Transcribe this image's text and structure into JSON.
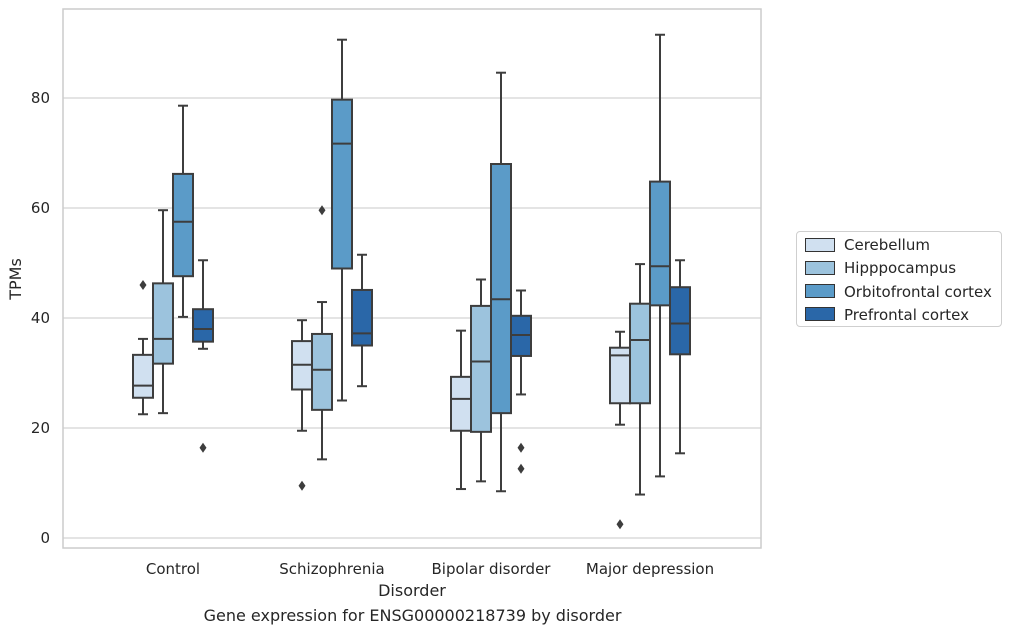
{
  "title": "Gene expression for ENSG00000218739 by disorder",
  "chart_data": {
    "type": "box",
    "title": "Gene expression for ENSG00000218739 by disorder",
    "xlabel": "Disorder",
    "ylabel": "TPMs",
    "ylim": [
      -2,
      96
    ],
    "yticks": [
      0,
      20,
      40,
      60,
      80
    ],
    "grid": "horizontal",
    "legend_position": "right",
    "categories": [
      "Control",
      "Schizophrenia",
      "Bipolar disorder",
      "Major depression"
    ],
    "series": [
      {
        "name": "Cerebellum",
        "color": "#d0e0f0",
        "boxes": [
          {
            "whislo": 22.5,
            "q1": 25.5,
            "med": 27.7,
            "q3": 33.3,
            "whishi": 36.2,
            "fliers": [
              46
            ]
          },
          {
            "whislo": 19.5,
            "q1": 27.0,
            "med": 31.5,
            "q3": 35.8,
            "whishi": 39.6,
            "fliers": [
              9.5
            ]
          },
          {
            "whislo": 8.9,
            "q1": 19.5,
            "med": 25.3,
            "q3": 29.3,
            "whishi": 37.7,
            "fliers": []
          },
          {
            "whislo": 20.6,
            "q1": 24.5,
            "med": 33.2,
            "q3": 34.6,
            "whishi": 37.5,
            "fliers": [
              2.5
            ]
          }
        ]
      },
      {
        "name": "Hipppocampus",
        "color": "#9cc3dd",
        "boxes": [
          {
            "whislo": 22.7,
            "q1": 31.7,
            "med": 36.2,
            "q3": 46.3,
            "whishi": 59.6,
            "fliers": []
          },
          {
            "whislo": 14.3,
            "q1": 23.3,
            "med": 30.6,
            "q3": 37.1,
            "whishi": 42.9,
            "fliers": [
              59.6
            ]
          },
          {
            "whislo": 10.3,
            "q1": 19.3,
            "med": 32.1,
            "q3": 42.2,
            "whishi": 47.0,
            "fliers": []
          },
          {
            "whislo": 7.9,
            "q1": 24.5,
            "med": 36.0,
            "q3": 42.6,
            "whishi": 49.8,
            "fliers": []
          }
        ]
      },
      {
        "name": "Orbitofrontal cortex",
        "color": "#5b9bc8",
        "boxes": [
          {
            "whislo": 40.2,
            "q1": 47.6,
            "med": 57.5,
            "q3": 66.2,
            "whishi": 78.6,
            "fliers": []
          },
          {
            "whislo": 25.0,
            "q1": 49.0,
            "med": 71.7,
            "q3": 79.7,
            "whishi": 90.6,
            "fliers": []
          },
          {
            "whislo": 8.5,
            "q1": 22.7,
            "med": 43.4,
            "q3": 68.0,
            "whishi": 84.6,
            "fliers": []
          },
          {
            "whislo": 11.2,
            "q1": 42.3,
            "med": 49.4,
            "q3": 64.8,
            "whishi": 91.5,
            "fliers": []
          }
        ]
      },
      {
        "name": "Prefrontal cortex",
        "color": "#2a67a8",
        "boxes": [
          {
            "whislo": 34.4,
            "q1": 35.7,
            "med": 38.0,
            "q3": 41.6,
            "whishi": 50.5,
            "fliers": [
              16.4
            ]
          },
          {
            "whislo": 27.6,
            "q1": 35.0,
            "med": 37.2,
            "q3": 45.1,
            "whishi": 51.5,
            "fliers": []
          },
          {
            "whislo": 26.1,
            "q1": 33.1,
            "med": 36.9,
            "q3": 40.4,
            "whishi": 45.0,
            "fliers": [
              16.4,
              12.6
            ]
          },
          {
            "whislo": 15.4,
            "q1": 33.4,
            "med": 39.0,
            "q3": 45.6,
            "whishi": 50.5,
            "fliers": []
          }
        ]
      }
    ]
  }
}
